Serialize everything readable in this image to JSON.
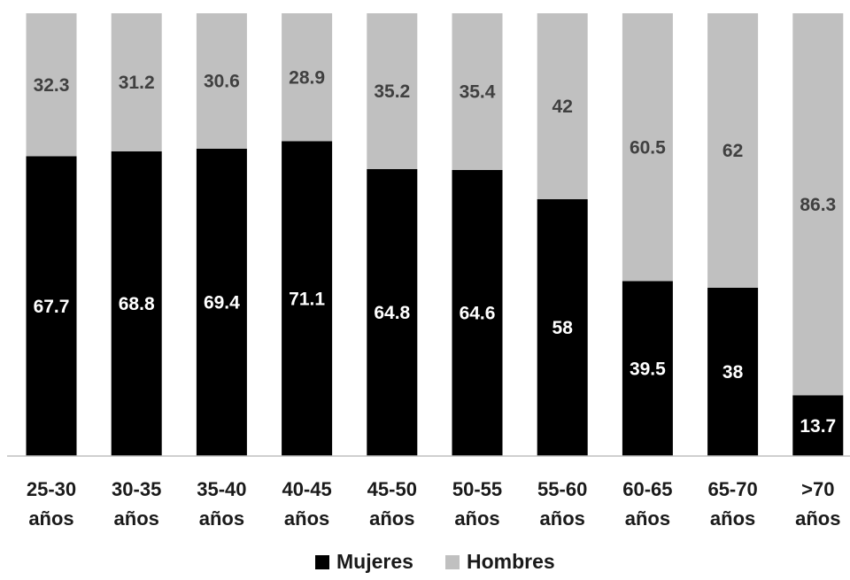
{
  "chart_data": {
    "type": "bar",
    "stacked": true,
    "percent_stacked": true,
    "categories": [
      [
        "25-30",
        "años"
      ],
      [
        "30-35",
        "años"
      ],
      [
        "35-40",
        "años"
      ],
      [
        "40-45",
        "años"
      ],
      [
        "45-50",
        "años"
      ],
      [
        "50-55",
        "años"
      ],
      [
        "55-60",
        "años"
      ],
      [
        "60-65",
        "años"
      ],
      [
        "65-70",
        "años"
      ],
      [
        ">70",
        "años"
      ]
    ],
    "series": [
      {
        "name": "Mujeres",
        "color": "#000000",
        "label_color": "#ffffff",
        "values": [
          67.7,
          68.8,
          69.4,
          71.1,
          64.8,
          64.6,
          58,
          39.5,
          38,
          13.7
        ],
        "labels": [
          "67.7",
          "68.8",
          "69.4",
          "71.1",
          "64.8",
          "64.6",
          "58",
          "39.5",
          "38",
          "13.7"
        ]
      },
      {
        "name": "Hombres",
        "color": "#c0c0c0",
        "label_color": "#404040",
        "values": [
          32.3,
          31.2,
          30.6,
          28.9,
          35.2,
          35.4,
          42,
          60.5,
          62,
          86.3
        ],
        "labels": [
          "32.3",
          "31.2",
          "30.6",
          "28.9",
          "35.2",
          "35.4",
          "42",
          "60.5",
          "62",
          "86.3"
        ]
      }
    ],
    "title": "",
    "xlabel": "",
    "ylabel": "",
    "ylim": [
      0,
      100
    ],
    "grid": false,
    "legend_position": "bottom",
    "axis_color": "#bfbfbf"
  }
}
